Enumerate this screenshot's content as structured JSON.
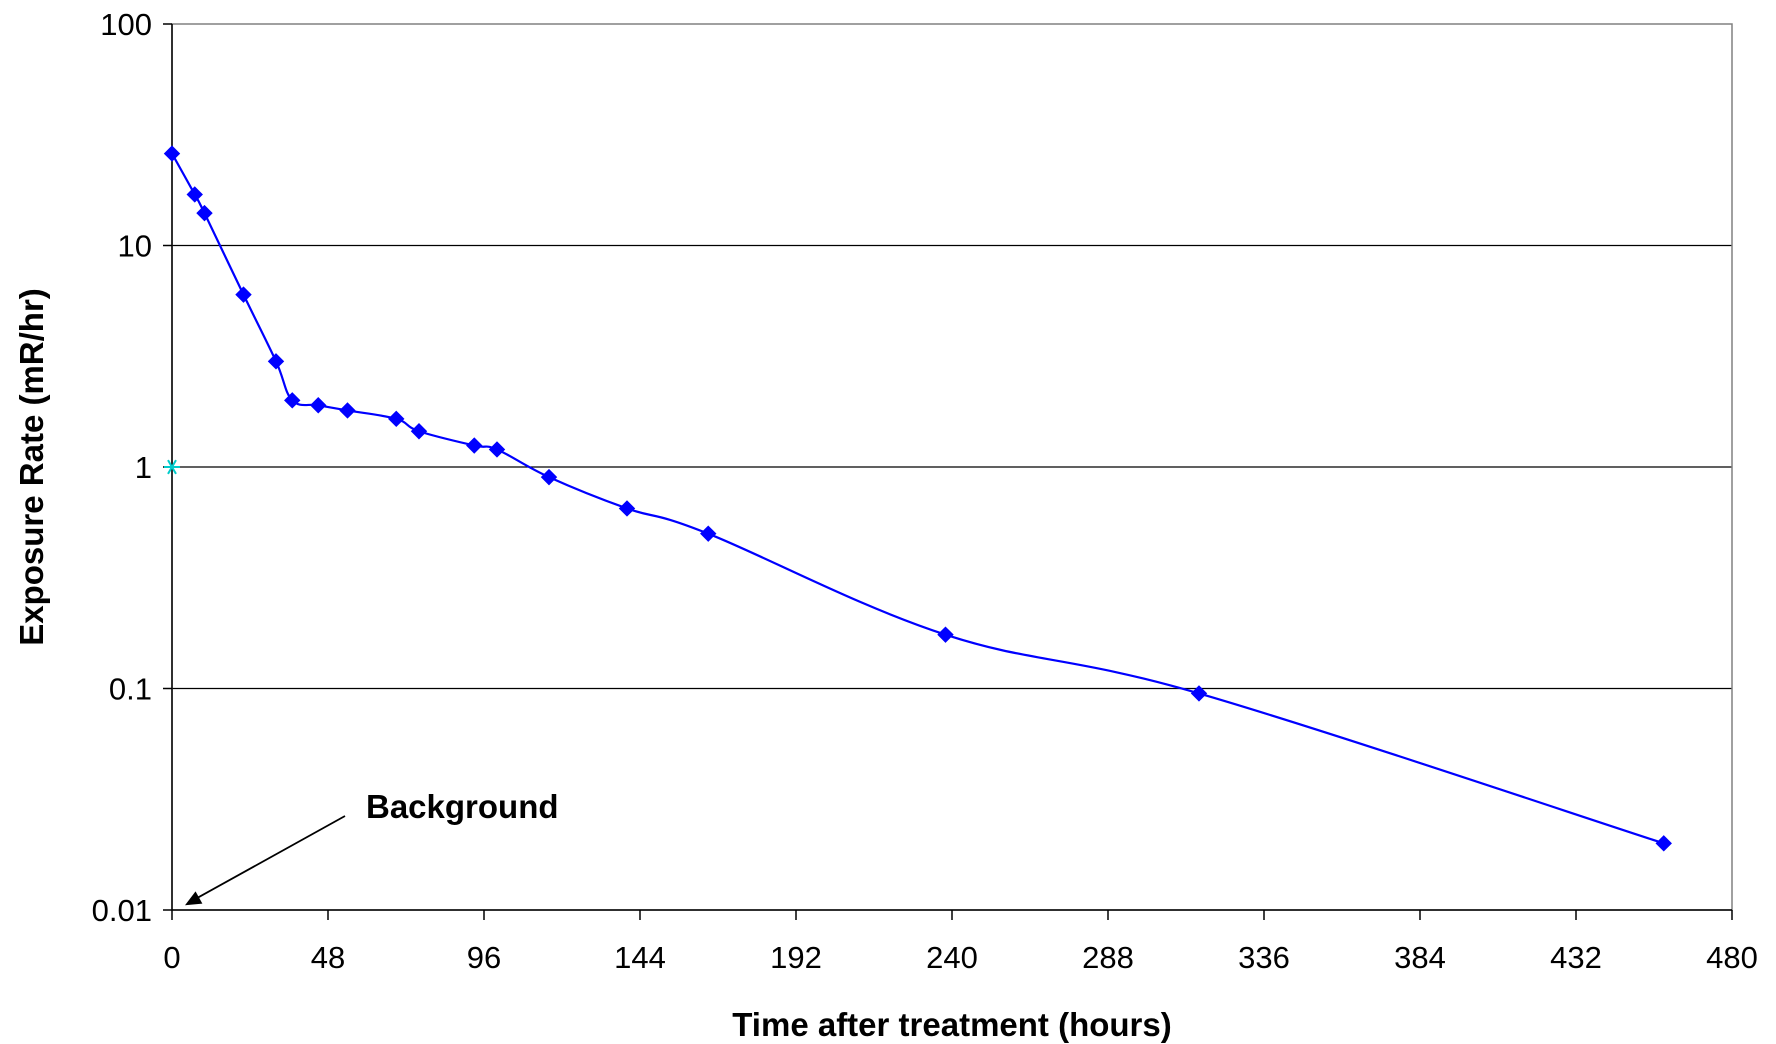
{
  "chart_data": {
    "type": "line",
    "title": "",
    "xlabel": "Time after treatment (hours)",
    "ylabel": "Exposure Rate (mR/hr)",
    "xlim": [
      0,
      480
    ],
    "ylim": [
      0.01,
      100
    ],
    "yscale": "log",
    "xticks": [
      0,
      48,
      96,
      144,
      192,
      240,
      288,
      336,
      384,
      432,
      480
    ],
    "yticks": [
      0.01,
      0.1,
      1,
      10,
      100
    ],
    "xtick_labels": [
      "0",
      "48",
      "96",
      "144",
      "192",
      "240",
      "288",
      "336",
      "384",
      "432",
      "480"
    ],
    "ytick_labels": [
      "0.01",
      "0.1",
      "1",
      "10",
      "100"
    ],
    "grid": "horizontal major gridlines",
    "legend": "none",
    "series": [
      {
        "color": "#0000ff",
        "marker": "diamond",
        "smooth": true,
        "x": [
          0,
          7,
          10,
          22,
          32,
          37,
          45,
          54,
          69,
          76,
          93,
          100,
          116,
          140,
          165,
          238,
          316,
          459
        ],
        "y": [
          26,
          17,
          14,
          6,
          3,
          2,
          1.9,
          1.8,
          1.65,
          1.45,
          1.25,
          1.2,
          0.9,
          0.65,
          0.5,
          0.175,
          0.095,
          0.02
        ]
      },
      {
        "name": "Background",
        "color": "#00cccc",
        "marker": "star",
        "x": [
          0
        ],
        "y": [
          1
        ]
      }
    ],
    "annotations": [
      {
        "text": "Background",
        "arrow_to": {
          "x": 4,
          "y": 0.0105
        }
      }
    ]
  }
}
